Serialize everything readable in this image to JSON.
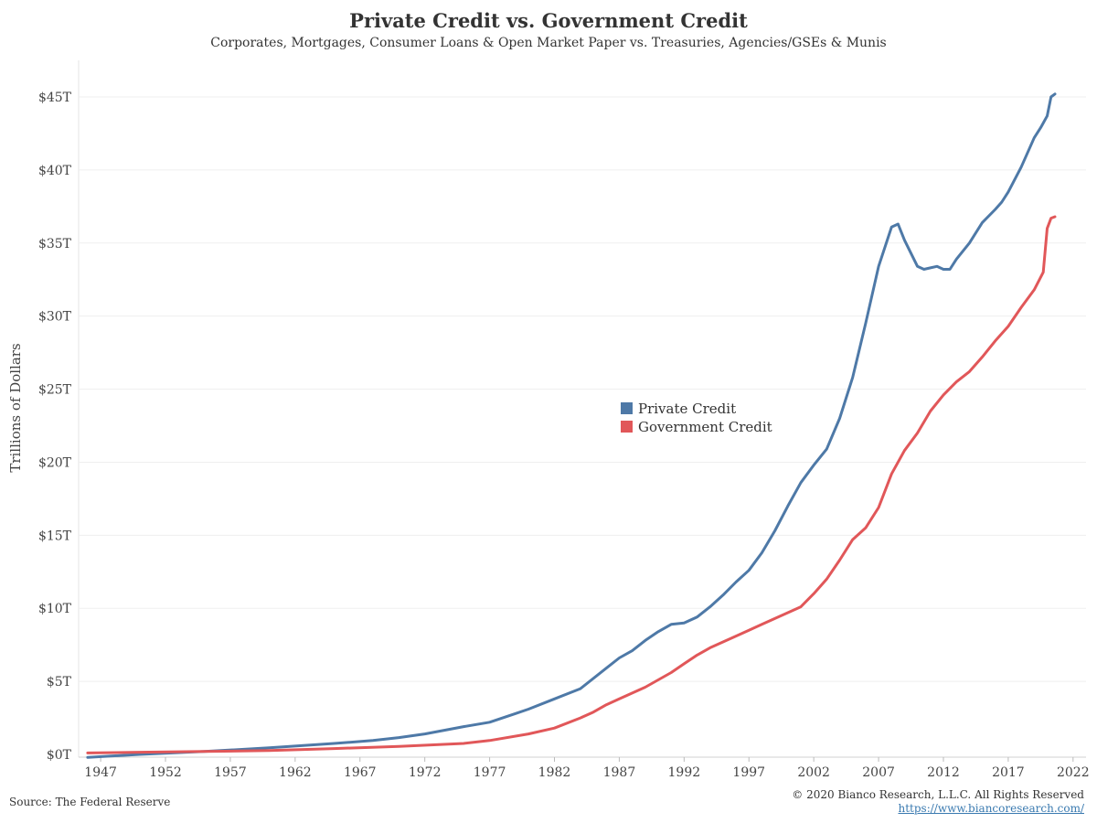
{
  "chart_data": {
    "type": "line",
    "title": "Private Credit vs. Government Credit",
    "subtitle": "Corporates, Mortgages, Consumer Loans & Open Market Paper vs. Treasuries, Agencies/GSEs & Munis",
    "ylabel": "Trillions of Dollars",
    "xlabel": "",
    "xlim": [
      1945.3,
      2023.0
    ],
    "ylim": [
      0,
      45
    ],
    "x_ticks": [
      "1947",
      "1952",
      "1957",
      "1962",
      "1967",
      "1972",
      "1977",
      "1982",
      "1987",
      "1992",
      "1997",
      "2002",
      "2007",
      "2012",
      "2017",
      "2022"
    ],
    "x_tick_values": [
      1947,
      1952,
      1957,
      1962,
      1967,
      1972,
      1977,
      1982,
      1987,
      1992,
      1997,
      2002,
      2007,
      2012,
      2017,
      2022
    ],
    "y_ticks": [
      "$0T",
      "$5T",
      "$10T",
      "$15T",
      "$20T",
      "$25T",
      "$30T",
      "$35T",
      "$40T",
      "$45T"
    ],
    "y_tick_values": [
      0,
      5,
      10,
      15,
      20,
      25,
      30,
      35,
      40,
      45
    ],
    "grid": "horizontal",
    "legend_position": "center",
    "series": [
      {
        "name": "Private Credit",
        "color": "#4e79a7",
        "x": [
          1946,
          1950,
          1955,
          1960,
          1965,
          1968,
          1970,
          1972,
          1975,
          1977,
          1979,
          1980,
          1982,
          1984,
          1986,
          1987,
          1988,
          1989,
          1990,
          1991,
          1992,
          1993,
          1994,
          1995,
          1996,
          1997,
          1998,
          1999,
          2000,
          2001,
          2002,
          2003,
          2004,
          2005,
          2006,
          2007,
          2008,
          2008.5,
          2009,
          2010,
          2010.5,
          2011,
          2011.5,
          2012,
          2012.5,
          2013,
          2014,
          2015,
          2016,
          2016.5,
          2017,
          2018,
          2019,
          2019.5,
          2020,
          2020.3,
          2020.6
        ],
        "y": [
          -0.2,
          0.0,
          0.2,
          0.45,
          0.75,
          0.95,
          1.15,
          1.4,
          1.9,
          2.2,
          2.8,
          3.1,
          3.8,
          4.5,
          5.9,
          6.6,
          7.1,
          7.8,
          8.4,
          8.9,
          9.0,
          9.4,
          10.1,
          10.9,
          11.8,
          12.6,
          13.8,
          15.3,
          17.0,
          18.6,
          19.8,
          20.9,
          23.0,
          25.8,
          29.5,
          33.4,
          36.1,
          36.3,
          35.2,
          33.4,
          33.2,
          33.3,
          33.4,
          33.2,
          33.2,
          33.9,
          35.0,
          36.4,
          37.3,
          37.8,
          38.5,
          40.2,
          42.2,
          42.9,
          43.7,
          45.0,
          45.2
        ]
      },
      {
        "name": "Government Credit",
        "color": "#e15759",
        "x": [
          1946,
          1950,
          1955,
          1960,
          1965,
          1970,
          1975,
          1977,
          1980,
          1982,
          1984,
          1985,
          1986,
          1987,
          1988,
          1989,
          1990,
          1991,
          1992,
          1993,
          1994,
          1995,
          1996,
          1997,
          1998,
          1999,
          2000,
          2001,
          2002,
          2003,
          2004,
          2005,
          2006,
          2007,
          2008,
          2009,
          2010,
          2011,
          2012,
          2013,
          2014,
          2015,
          2016,
          2017,
          2018,
          2019,
          2019.7,
          2020,
          2020.3,
          2020.6
        ],
        "y": [
          0.1,
          0.15,
          0.2,
          0.27,
          0.4,
          0.55,
          0.75,
          0.95,
          1.4,
          1.8,
          2.5,
          2.9,
          3.4,
          3.8,
          4.2,
          4.6,
          5.1,
          5.6,
          6.2,
          6.8,
          7.3,
          7.7,
          8.1,
          8.5,
          8.9,
          9.3,
          9.7,
          10.1,
          11.0,
          12.0,
          13.3,
          14.7,
          15.5,
          16.9,
          19.2,
          20.8,
          22.0,
          23.5,
          24.6,
          25.5,
          26.2,
          27.2,
          28.3,
          29.3,
          30.6,
          31.8,
          33.0,
          36.0,
          36.7,
          36.8
        ]
      }
    ]
  },
  "footer": {
    "source": "Source: The Federal Reserve",
    "copyright": "© 2020 Bianco Research, L.L.C. All Rights Reserved",
    "link": "https://www.biancoresearch.com/"
  }
}
